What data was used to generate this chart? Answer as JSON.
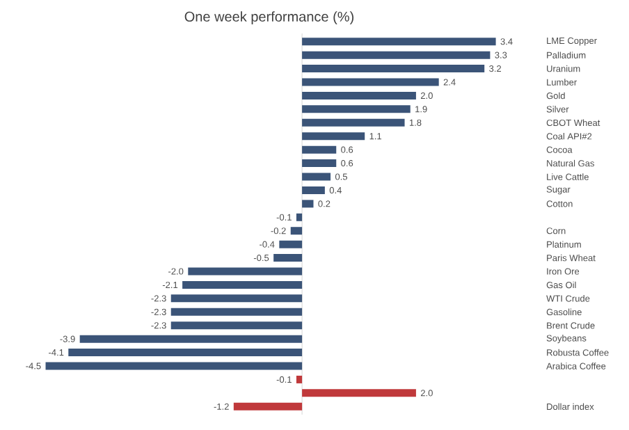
{
  "chart_data": {
    "type": "bar",
    "orientation": "horizontal",
    "title": "One week performance (%)",
    "categories": [
      "LME Copper",
      "Palladium",
      "Uranium",
      "Lumber",
      "Gold",
      "Silver",
      "CBOT Wheat",
      "Coal API#2",
      "Cocoa",
      "Natural Gas",
      "Live Cattle",
      "Sugar",
      "Cotton",
      null,
      "Corn",
      "Platinum",
      "Paris Wheat",
      "Iron Ore",
      "Gas Oil",
      "WTI Crude",
      "Gasoline",
      "Brent Crude",
      "Soybeans",
      "Robusta Coffee",
      "Arabica Coffee",
      null,
      null,
      "Dollar index"
    ],
    "values": [
      3.4,
      3.3,
      3.2,
      2.4,
      2.0,
      1.9,
      1.8,
      1.1,
      0.6,
      0.6,
      0.5,
      0.4,
      0.2,
      -0.1,
      -0.2,
      -0.4,
      -0.5,
      -2.0,
      -2.1,
      -2.3,
      -2.3,
      -2.3,
      -3.9,
      -4.1,
      -4.5,
      -0.1,
      2.0,
      -1.2
    ],
    "colors": [
      "#3b5478",
      "#3b5478",
      "#3b5478",
      "#3b5478",
      "#3b5478",
      "#3b5478",
      "#3b5478",
      "#3b5478",
      "#3b5478",
      "#3b5478",
      "#3b5478",
      "#3b5478",
      "#3b5478",
      "#3b5478",
      "#3b5478",
      "#3b5478",
      "#3b5478",
      "#3b5478",
      "#3b5478",
      "#3b5478",
      "#3b5478",
      "#3b5478",
      "#3b5478",
      "#3b5478",
      "#3b5478",
      "#c0393b",
      "#c0393b",
      "#c0393b"
    ],
    "value_labels": [
      "3.4",
      "3.3",
      "3.2",
      "2.4",
      "2.0",
      "1.9",
      "1.8",
      "1.1",
      "0.6",
      "0.6",
      "0.5",
      "0.4",
      "0.2",
      "-0.1",
      "-0.2",
      "-0.4",
      "-0.5",
      "-2.0",
      "-2.1",
      "-2.3",
      "-2.3",
      "-2.3",
      "-3.9",
      "-4.1",
      "-4.5",
      "-0.1",
      "2.0",
      "-1.2"
    ]
  }
}
